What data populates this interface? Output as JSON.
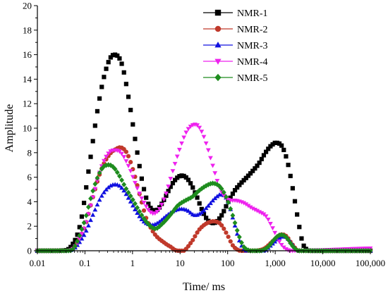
{
  "chart_data": {
    "type": "scatter",
    "title": "",
    "xlabel": "Time/ ms",
    "ylabel": "Amplitude",
    "xscale": "log",
    "xlim": [
      0.01,
      100000
    ],
    "ylim": [
      0,
      20
    ],
    "x_ticks": [
      {
        "value": 0.01,
        "label": "0.01"
      },
      {
        "value": 0.1,
        "label": "0.1"
      },
      {
        "value": 1,
        "label": "1"
      },
      {
        "value": 10,
        "label": "10"
      },
      {
        "value": 100,
        "label": "100"
      },
      {
        "value": 1000,
        "label": "1,000"
      },
      {
        "value": 10000,
        "label": "10,000"
      },
      {
        "value": 100000,
        "label": "100,000"
      }
    ],
    "y_ticks": [
      0,
      2,
      4,
      6,
      8,
      10,
      12,
      14,
      16,
      18,
      20
    ],
    "grid": false,
    "legend_position": "top-right",
    "series": [
      {
        "name": "NMR-1",
        "color": "#000000",
        "marker": "square",
        "points": [
          [
            0.01,
            0
          ],
          [
            0.03,
            0
          ],
          [
            0.05,
            0.3
          ],
          [
            0.08,
            2.2
          ],
          [
            0.13,
            7.5
          ],
          [
            0.2,
            12.3
          ],
          [
            0.3,
            15.2
          ],
          [
            0.42,
            16
          ],
          [
            0.6,
            15.2
          ],
          [
            0.85,
            12.2
          ],
          [
            1.2,
            8.5
          ],
          [
            1.7,
            5.2
          ],
          [
            2.3,
            3.6
          ],
          [
            3.2,
            3.3
          ],
          [
            4.5,
            4.1
          ],
          [
            6.5,
            5.3
          ],
          [
            9,
            6
          ],
          [
            12,
            6.1
          ],
          [
            16,
            5.6
          ],
          [
            22,
            4.5
          ],
          [
            30,
            3.2
          ],
          [
            40,
            2.4
          ],
          [
            55,
            2.3
          ],
          [
            75,
            2.9
          ],
          [
            100,
            3.9
          ],
          [
            140,
            4.9
          ],
          [
            200,
            5.6
          ],
          [
            300,
            6.3
          ],
          [
            450,
            7.1
          ],
          [
            650,
            8.1
          ],
          [
            900,
            8.7
          ],
          [
            1100,
            8.8
          ],
          [
            1400,
            8.5
          ],
          [
            1800,
            7.3
          ],
          [
            2300,
            5.2
          ],
          [
            3000,
            2.6
          ],
          [
            3800,
            0.6
          ],
          [
            5000,
            0
          ],
          [
            100000,
            0
          ]
        ]
      },
      {
        "name": "NMR-2",
        "color": "#c0392b",
        "marker": "circle",
        "points": [
          [
            0.01,
            0
          ],
          [
            0.04,
            0
          ],
          [
            0.06,
            0.3
          ],
          [
            0.1,
            2
          ],
          [
            0.15,
            4.5
          ],
          [
            0.22,
            6.6
          ],
          [
            0.32,
            7.8
          ],
          [
            0.45,
            8.3
          ],
          [
            0.6,
            8.4
          ],
          [
            0.8,
            7.8
          ],
          [
            1.1,
            6.2
          ],
          [
            1.5,
            4.2
          ],
          [
            2,
            2.5
          ],
          [
            3,
            1.3
          ],
          [
            4.5,
            0.7
          ],
          [
            6.5,
            0.3
          ],
          [
            8,
            0.05
          ],
          [
            12,
            0
          ],
          [
            18,
            0.8
          ],
          [
            25,
            1.7
          ],
          [
            35,
            2.2
          ],
          [
            50,
            2.4
          ],
          [
            70,
            2.2
          ],
          [
            95,
            1.4
          ],
          [
            130,
            0.4
          ],
          [
            180,
            0
          ],
          [
            400,
            0
          ],
          [
            600,
            0.2
          ],
          [
            900,
            0.8
          ],
          [
            1300,
            1.3
          ],
          [
            1700,
            1.2
          ],
          [
            2200,
            0.6
          ],
          [
            3000,
            0
          ],
          [
            100000,
            0
          ]
        ]
      },
      {
        "name": "NMR-3",
        "color": "#1010e0",
        "marker": "triangle-up",
        "points": [
          [
            0.01,
            0
          ],
          [
            0.04,
            0
          ],
          [
            0.06,
            0.2
          ],
          [
            0.1,
            1.4
          ],
          [
            0.15,
            3
          ],
          [
            0.22,
            4.4
          ],
          [
            0.32,
            5.2
          ],
          [
            0.45,
            5.4
          ],
          [
            0.6,
            5.1
          ],
          [
            0.85,
            4.2
          ],
          [
            1.2,
            3.2
          ],
          [
            1.7,
            2.4
          ],
          [
            2.5,
            2.1
          ],
          [
            3.5,
            2.3
          ],
          [
            5,
            2.8
          ],
          [
            7,
            3.2
          ],
          [
            10,
            3.4
          ],
          [
            14,
            3.3
          ],
          [
            20,
            2.9
          ],
          [
            28,
            3.1
          ],
          [
            40,
            3.7
          ],
          [
            55,
            4.3
          ],
          [
            75,
            4.6
          ],
          [
            100,
            4.1
          ],
          [
            130,
            2.6
          ],
          [
            170,
            1
          ],
          [
            220,
            0.1
          ],
          [
            300,
            0
          ],
          [
            600,
            0
          ],
          [
            900,
            0.6
          ],
          [
            1300,
            1.1
          ],
          [
            1700,
            1.1
          ],
          [
            2300,
            0.5
          ],
          [
            3000,
            0
          ],
          [
            100000,
            0
          ]
        ]
      },
      {
        "name": "NMR-4",
        "color": "#ee22ee",
        "marker": "triangle-down",
        "points": [
          [
            0.01,
            0
          ],
          [
            0.04,
            0
          ],
          [
            0.06,
            0.3
          ],
          [
            0.1,
            2
          ],
          [
            0.15,
            4.5
          ],
          [
            0.22,
            6.8
          ],
          [
            0.32,
            8
          ],
          [
            0.45,
            8.2
          ],
          [
            0.6,
            7.9
          ],
          [
            0.85,
            6.8
          ],
          [
            1.2,
            5.3
          ],
          [
            1.7,
            4
          ],
          [
            2.5,
            3.1
          ],
          [
            3.5,
            3.3
          ],
          [
            5,
            4.6
          ],
          [
            7,
            6.5
          ],
          [
            10,
            8.4
          ],
          [
            14,
            9.8
          ],
          [
            20,
            10.3
          ],
          [
            26,
            10
          ],
          [
            35,
            8.8
          ],
          [
            50,
            6.8
          ],
          [
            70,
            5
          ],
          [
            100,
            4.2
          ],
          [
            150,
            4.1
          ],
          [
            220,
            3.9
          ],
          [
            320,
            3.5
          ],
          [
            450,
            3.2
          ],
          [
            650,
            2.8
          ],
          [
            900,
            1.8
          ],
          [
            1200,
            0.8
          ],
          [
            1600,
            0.2
          ],
          [
            2200,
            0
          ],
          [
            100000,
            0.2
          ]
        ]
      },
      {
        "name": "NMR-5",
        "color": "#1e8c1e",
        "marker": "diamond",
        "points": [
          [
            0.01,
            0
          ],
          [
            0.04,
            0
          ],
          [
            0.06,
            0.3
          ],
          [
            0.1,
            2.5
          ],
          [
            0.15,
            5
          ],
          [
            0.22,
            6.6
          ],
          [
            0.3,
            7
          ],
          [
            0.4,
            6.8
          ],
          [
            0.55,
            6
          ],
          [
            0.75,
            5
          ],
          [
            1,
            4.2
          ],
          [
            1.4,
            3.2
          ],
          [
            2,
            2.3
          ],
          [
            3,
            1.8
          ],
          [
            4.5,
            2.3
          ],
          [
            6.5,
            3
          ],
          [
            9,
            3.7
          ],
          [
            13,
            4.1
          ],
          [
            18,
            4.4
          ],
          [
            25,
            4.9
          ],
          [
            35,
            5.3
          ],
          [
            50,
            5.5
          ],
          [
            70,
            5.2
          ],
          [
            95,
            4.3
          ],
          [
            130,
            2.8
          ],
          [
            170,
            1.3
          ],
          [
            220,
            0.3
          ],
          [
            300,
            0
          ],
          [
            500,
            0
          ],
          [
            700,
            0.3
          ],
          [
            1000,
            1
          ],
          [
            1300,
            1.3
          ],
          [
            1700,
            1.1
          ],
          [
            2300,
            0.4
          ],
          [
            3000,
            0
          ],
          [
            100000,
            0
          ]
        ]
      }
    ]
  }
}
